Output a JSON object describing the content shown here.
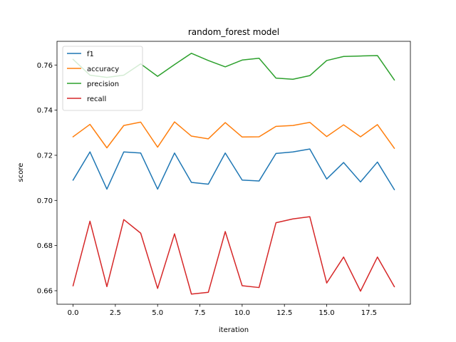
{
  "chart_data": {
    "type": "line",
    "title": "random_forest model",
    "xlabel": "iteration",
    "ylabel": "score",
    "xlim": [
      -0.95,
      19.95
    ],
    "ylim": [
      0.654,
      0.7705
    ],
    "xticks": [
      0.0,
      2.5,
      5.0,
      7.5,
      10.0,
      12.5,
      15.0,
      17.5
    ],
    "xtick_labels": [
      "0.0",
      "2.5",
      "5.0",
      "7.5",
      "10.0",
      "12.5",
      "15.0",
      "17.5"
    ],
    "yticks": [
      0.66,
      0.68,
      0.7,
      0.72,
      0.74,
      0.76
    ],
    "ytick_labels": [
      "0.66",
      "0.68",
      "0.70",
      "0.72",
      "0.74",
      "0.76"
    ],
    "grid": false,
    "legend_position": "top-left",
    "x": [
      0,
      1,
      2,
      3,
      4,
      5,
      6,
      7,
      8,
      9,
      10,
      11,
      12,
      13,
      14,
      15,
      16,
      17,
      18,
      19
    ],
    "series": [
      {
        "name": "f1",
        "color": "#1f77b4",
        "values": [
          0.709,
          0.7215,
          0.705,
          0.7215,
          0.721,
          0.705,
          0.721,
          0.708,
          0.7072,
          0.721,
          0.709,
          0.7086,
          0.7208,
          0.7215,
          0.7228,
          0.7095,
          0.7168,
          0.7082,
          0.717,
          0.7048
        ]
      },
      {
        "name": "accuracy",
        "color": "#ff7f0e",
        "values": [
          0.7282,
          0.7337,
          0.7233,
          0.7332,
          0.7347,
          0.7236,
          0.7348,
          0.7285,
          0.7273,
          0.7345,
          0.7281,
          0.7282,
          0.7328,
          0.7332,
          0.7346,
          0.7283,
          0.7335,
          0.7282,
          0.7336,
          0.7231
        ]
      },
      {
        "name": "precision",
        "color": "#2ca02c",
        "values": [
          0.7625,
          0.7555,
          0.7545,
          0.7555,
          0.7605,
          0.755,
          0.7602,
          0.7652,
          0.762,
          0.7592,
          0.7622,
          0.763,
          0.7542,
          0.7537,
          0.7553,
          0.762,
          0.7638,
          0.764,
          0.7642,
          0.7534
        ]
      },
      {
        "name": "recall",
        "color": "#d62728",
        "values": [
          0.6622,
          0.6908,
          0.6618,
          0.6915,
          0.6855,
          0.661,
          0.6852,
          0.6585,
          0.6593,
          0.6862,
          0.6622,
          0.6614,
          0.6901,
          0.6918,
          0.6928,
          0.6634,
          0.6749,
          0.6598,
          0.6749,
          0.6618
        ]
      }
    ]
  }
}
